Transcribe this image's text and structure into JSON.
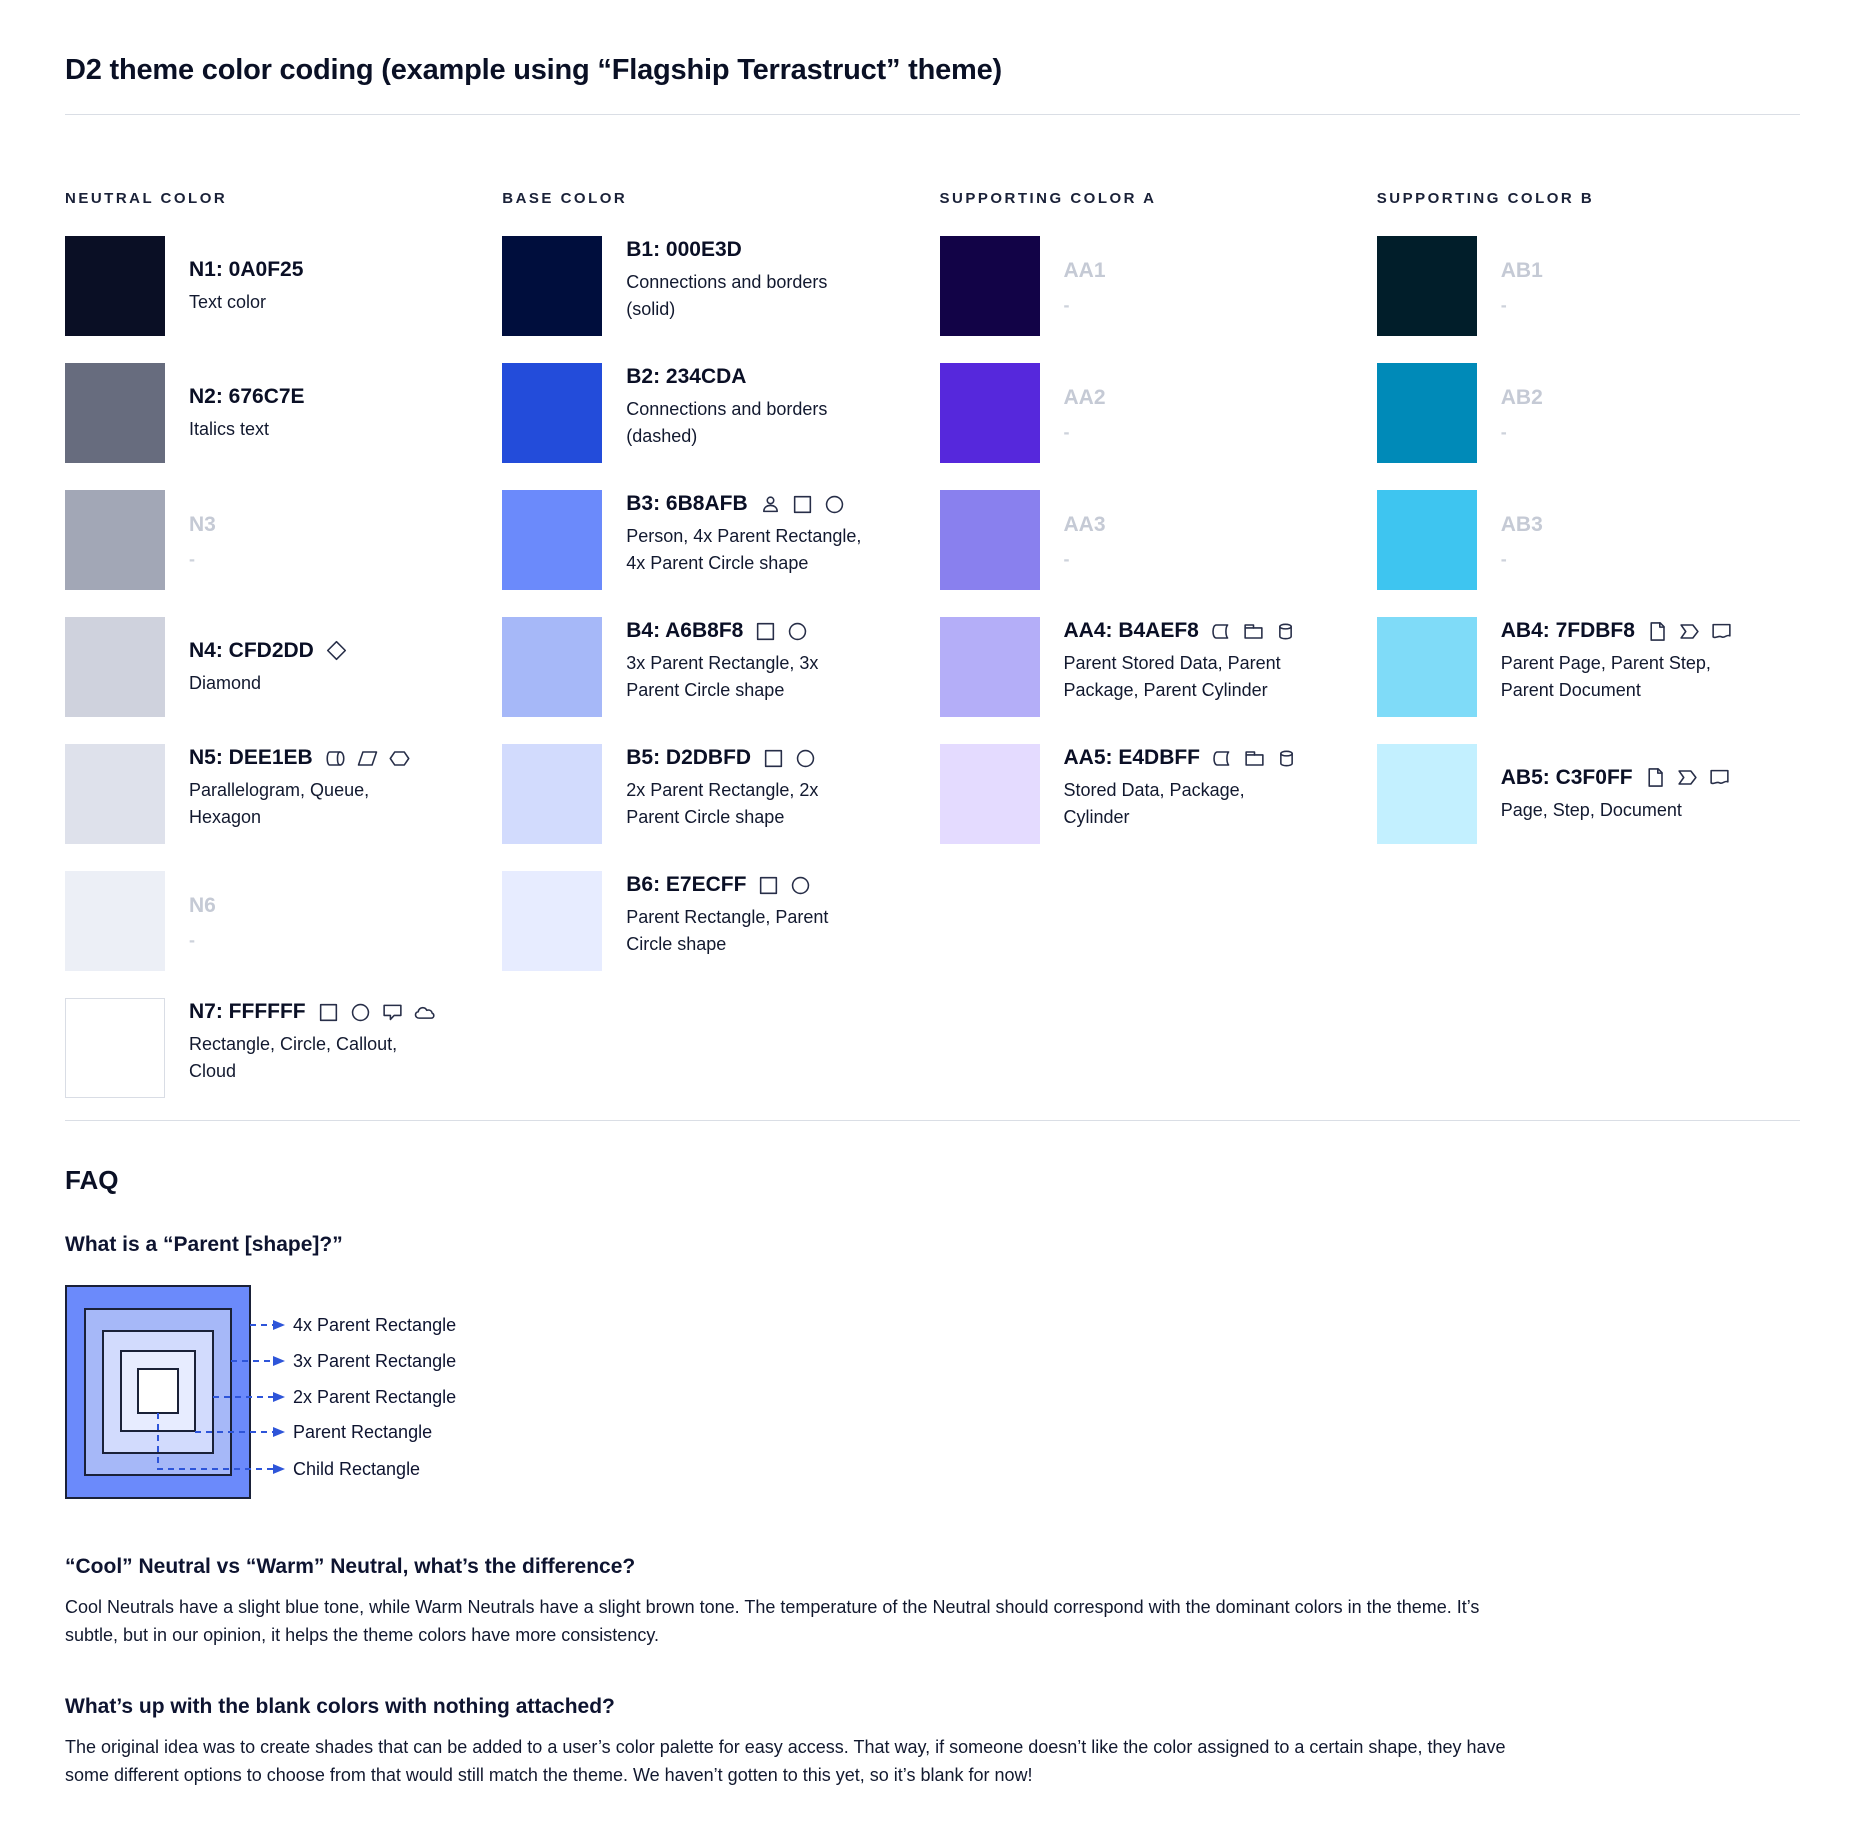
{
  "title": "D2 theme color coding (example using “Flagship Terrastruct” theme)",
  "columns": [
    {
      "header": "NEUTRAL COLOR",
      "rows": [
        {
          "id": "n1",
          "code": "N1: 0A0F25",
          "desc": "Text color",
          "swatch": "#0A0F25",
          "icons": [],
          "blank": false
        },
        {
          "id": "n2",
          "code": "N2: 676C7E",
          "desc": "Italics text",
          "swatch": "#676C7E",
          "icons": [],
          "blank": false
        },
        {
          "id": "n3",
          "code": "N3",
          "desc": "-",
          "swatch": "#A2A7B6",
          "icons": [],
          "blank": true
        },
        {
          "id": "n4",
          "code": "N4: CFD2DD",
          "desc": "Diamond",
          "swatch": "#CFD2DD",
          "icons": [
            "diamond"
          ],
          "blank": false
        },
        {
          "id": "n5",
          "code": "N5: DEE1EB",
          "desc": "Parallelogram, Queue, Hexagon",
          "swatch": "#DEE1EB",
          "icons": [
            "queue",
            "parallelogram",
            "hexagon"
          ],
          "blank": false
        },
        {
          "id": "n6",
          "code": "N6",
          "desc": "-",
          "swatch": "#ECEFF6",
          "icons": [],
          "blank": true
        },
        {
          "id": "n7",
          "code": "N7: FFFFFF",
          "desc": "Rectangle, Circle, Callout, Cloud",
          "swatch": "#FFFFFF",
          "swatch_border": true,
          "icons": [
            "square",
            "circle",
            "callout",
            "cloud"
          ],
          "blank": false
        }
      ]
    },
    {
      "header": "BASE COLOR",
      "rows": [
        {
          "id": "b1",
          "code": "B1: 000E3D",
          "desc": "Connections and borders (solid)",
          "swatch": "#000E3D",
          "icons": [],
          "blank": false
        },
        {
          "id": "b2",
          "code": "B2: 234CDA",
          "desc": "Connections and borders (dashed)",
          "swatch": "#234CDA",
          "icons": [],
          "blank": false
        },
        {
          "id": "b3",
          "code": "B3: 6B8AFB",
          "desc": "Person, 4x Parent Rectangle, 4x Parent Circle shape",
          "swatch": "#6B8AFB",
          "icons": [
            "person",
            "square",
            "circle"
          ],
          "blank": false
        },
        {
          "id": "b4",
          "code": "B4: A6B8F8",
          "desc": "3x Parent Rectangle, 3x Parent Circle shape",
          "swatch": "#A6B8F8",
          "icons": [
            "square",
            "circle"
          ],
          "blank": false
        },
        {
          "id": "b5",
          "code": "B5: D2DBFD",
          "desc": "2x Parent Rectangle, 2x Parent Circle shape",
          "swatch": "#D2DBFD",
          "icons": [
            "square",
            "circle"
          ],
          "blank": false
        },
        {
          "id": "b6",
          "code": "B6: E7ECFF",
          "desc": "Parent Rectangle, Parent Circle shape",
          "swatch": "#E7ECFF",
          "icons": [
            "square",
            "circle"
          ],
          "blank": false
        }
      ]
    },
    {
      "header": "SUPPORTING COLOR A",
      "rows": [
        {
          "id": "aa1",
          "code": "AA1",
          "desc": "-",
          "swatch": "#120347",
          "icons": [],
          "blank": true
        },
        {
          "id": "aa2",
          "code": "AA2",
          "desc": "-",
          "swatch": "#5628DC",
          "icons": [],
          "blank": true
        },
        {
          "id": "aa3",
          "code": "AA3",
          "desc": "-",
          "swatch": "#8980EE",
          "icons": [],
          "blank": true
        },
        {
          "id": "aa4",
          "code": "AA4: B4AEF8",
          "desc": "Parent Stored Data, Parent Package,  Parent Cylinder",
          "swatch": "#B4AEF8",
          "icons": [
            "stored-data",
            "package",
            "cylinder"
          ],
          "blank": false
        },
        {
          "id": "aa5",
          "code": "AA5: E4DBFF",
          "desc": "Stored Data, Package, Cylinder",
          "swatch": "#E4DBFF",
          "icons": [
            "stored-data",
            "package",
            "cylinder"
          ],
          "blank": false
        }
      ]
    },
    {
      "header": "SUPPORTING COLOR B",
      "rows": [
        {
          "id": "ab1",
          "code": "AB1",
          "desc": "-",
          "swatch": "#011E2A",
          "icons": [],
          "blank": true
        },
        {
          "id": "ab2",
          "code": "AB2",
          "desc": "-",
          "swatch": "#008AB8",
          "icons": [],
          "blank": true
        },
        {
          "id": "ab3",
          "code": "AB3",
          "desc": "-",
          "swatch": "#3EC5F0",
          "icons": [],
          "blank": true
        },
        {
          "id": "ab4",
          "code": "AB4: 7FDBF8",
          "desc": "Parent Page, Parent Step, Parent Document",
          "swatch": "#7FDBF8",
          "icons": [
            "page",
            "step",
            "document"
          ],
          "blank": false
        },
        {
          "id": "ab5",
          "code": "AB5: C3F0FF",
          "desc": "Page, Step, Document",
          "swatch": "#C3F0FF",
          "icons": [
            "page",
            "step",
            "document"
          ],
          "blank": false
        }
      ]
    }
  ],
  "faq": {
    "title": "FAQ",
    "q1": "What is a “Parent [shape]?”",
    "diagram_labels": [
      "4x Parent Rectangle",
      "3x Parent Rectangle",
      "2x Parent Rectangle",
      "Parent Rectangle",
      "Child Rectangle"
    ],
    "q2": "“Cool” Neutral vs “Warm” Neutral, what’s the difference?",
    "a2": "Cool Neutrals have a slight blue tone, while Warm Neutrals have a slight brown tone. The temperature of the Neutral should correspond with the dominant colors in the theme. It’s subtle, but in our opinion, it helps the theme colors have more consistency.",
    "q3": "What’s up with the blank colors with nothing attached?",
    "a3": "The original idea was to create shades that can be added to a user’s color palette for easy access. That way, if someone doesn’t like the color assigned to a certain shape, they have some different options to choose from that would still match the theme. We haven’t gotten to this yet, so it’s blank for now!"
  },
  "diagram_colors": {
    "rings": [
      "#6B8AFB",
      "#A6B8F8",
      "#D2DBFD",
      "#E7ECFF",
      "#FFFFFF"
    ],
    "border": "#1A2138",
    "connector": "#2E55D9"
  }
}
